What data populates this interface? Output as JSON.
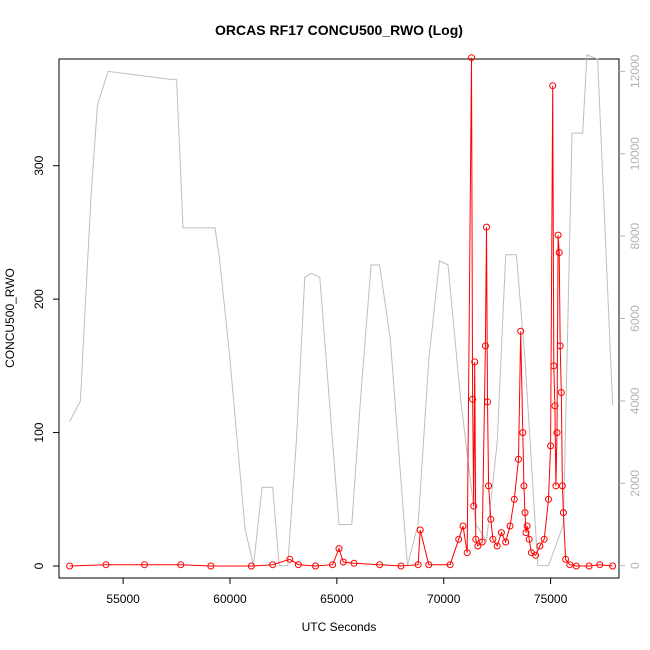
{
  "chart_data": {
    "type": "line",
    "title": "ORCAS RF17 CONCU500_RWO (Log)",
    "xlabel": "UTC Seconds",
    "ylabel": "CONCU500_RWO",
    "xlim": [
      52000,
      78200
    ],
    "ylim": [
      -9,
      380
    ],
    "y2lim": [
      -300,
      12300
    ],
    "x_ticks": [
      55000,
      60000,
      65000,
      70000,
      75000
    ],
    "x_tick_labels": [
      "55000",
      "60000",
      "65000",
      "70000",
      "75000"
    ],
    "y_ticks": [
      0,
      100,
      200,
      300
    ],
    "y_tick_labels": [
      "0",
      "100",
      "200",
      "300"
    ],
    "y2_ticks": [
      0,
      2000,
      4000,
      6000,
      8000,
      10000,
      12000
    ],
    "y2_tick_labels": [
      "0",
      "2000",
      "4000",
      "6000",
      "8000",
      "10000",
      "12000"
    ],
    "grid": false,
    "colors": {
      "concentration": "#ff0000",
      "altitude": "#bebebe",
      "axis": "#000000",
      "right_axis": "#b3b3b3"
    },
    "series": [
      {
        "axis": "left",
        "style": "line+open-circle",
        "x": [
          52500,
          54200,
          56000,
          57700,
          59100,
          61000,
          62000,
          62800,
          63200,
          64000,
          64800,
          65100,
          65300,
          65800,
          67000,
          68000,
          68800,
          68900,
          69300,
          70300,
          70700,
          70900,
          71100,
          71300,
          71350,
          71400,
          71450,
          71500,
          71600,
          71800,
          71950,
          72000,
          72050,
          72100,
          72200,
          72300,
          72500,
          72700,
          72900,
          73100,
          73300,
          73500,
          73600,
          73700,
          73750,
          73800,
          73850,
          73900,
          74000,
          74100,
          74300,
          74500,
          74700,
          74900,
          75000,
          75100,
          75150,
          75200,
          75250,
          75300,
          75350,
          75400,
          75450,
          75500,
          75550,
          75600,
          75700,
          75900,
          76200,
          76800,
          77300,
          77900
        ],
        "y": [
          0,
          1,
          1,
          1,
          0,
          0,
          1,
          5,
          1,
          0,
          1,
          13,
          3,
          2,
          1,
          0,
          1,
          27,
          1,
          1,
          20,
          30,
          10,
          381,
          125,
          45,
          153,
          20,
          15,
          18,
          165,
          254,
          123,
          60,
          35,
          20,
          15,
          25,
          18,
          30,
          50,
          80,
          176,
          100,
          60,
          40,
          25,
          30,
          20,
          10,
          8,
          15,
          20,
          50,
          90,
          360,
          150,
          120,
          60,
          100,
          248,
          235,
          165,
          130,
          60,
          40,
          5,
          1,
          0,
          0,
          1,
          0
        ]
      },
      {
        "axis": "right",
        "style": "line",
        "x": [
          52500,
          53000,
          53200,
          53500,
          53800,
          54300,
          57300,
          57500,
          57800,
          59300,
          59500,
          60000,
          60700,
          61100,
          61500,
          62000,
          62300,
          62700,
          63100,
          63500,
          63800,
          64200,
          65100,
          65700,
          66100,
          66600,
          67000,
          67500,
          68300,
          68800,
          69300,
          69800,
          70200,
          70800,
          71500,
          72000,
          72500,
          72900,
          73400,
          73800,
          74400,
          74900,
          75600,
          76000,
          76100,
          76500,
          76700,
          77200,
          77900
        ],
        "y": [
          3500,
          4000,
          6000,
          9000,
          11200,
          12000,
          11800,
          11800,
          8200,
          8200,
          7500,
          5000,
          900,
          0,
          1900,
          1900,
          0,
          0,
          3000,
          7000,
          7100,
          7000,
          1000,
          1000,
          4000,
          7300,
          7300,
          5500,
          0,
          1000,
          5000,
          7400,
          7300,
          4000,
          1000,
          600,
          3000,
          7550,
          7550,
          5000,
          0,
          0,
          1000,
          10500,
          10500,
          10500,
          12400,
          12300,
          3900
        ]
      }
    ]
  }
}
